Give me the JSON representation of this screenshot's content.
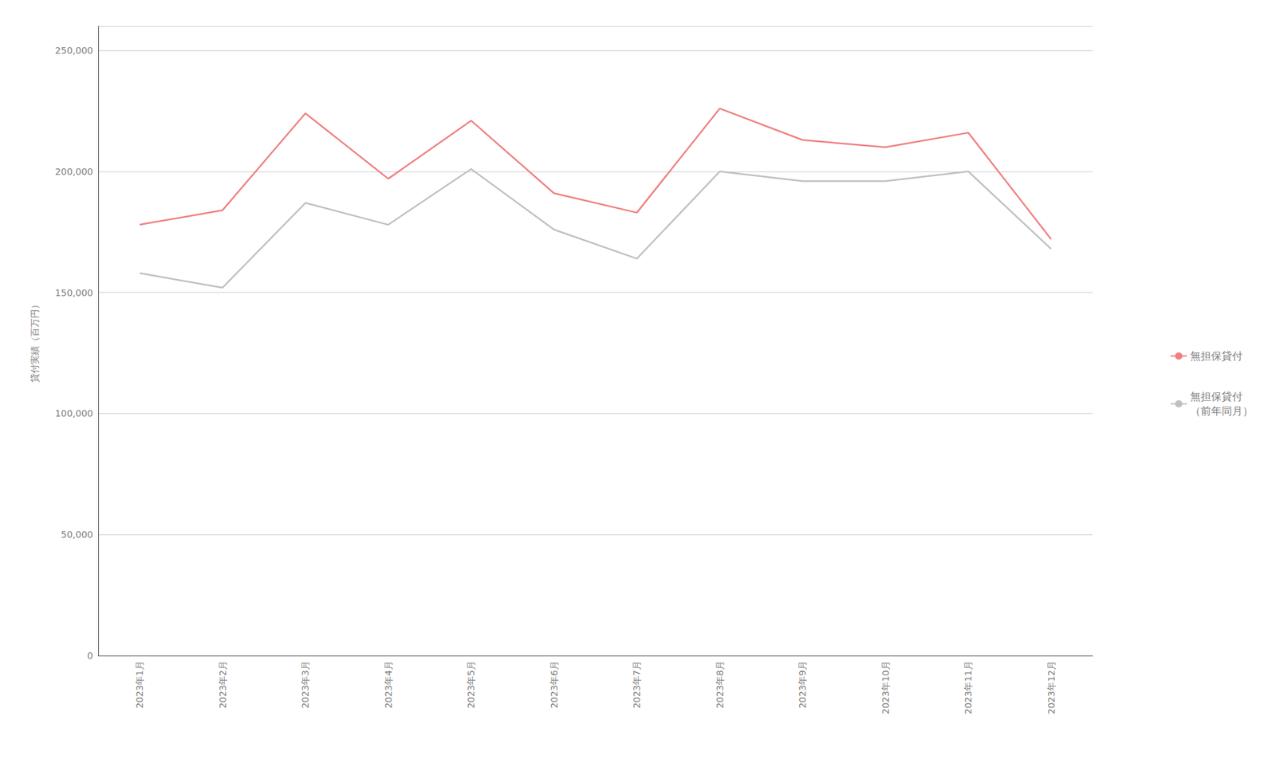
{
  "chart_data": {
    "type": "line",
    "ylabel": "貸付実績（百万円）",
    "categories": [
      "2023年1月",
      "2023年2月",
      "2023年3月",
      "2023年4月",
      "2023年5月",
      "2023年6月",
      "2023年7月",
      "2023年8月",
      "2023年9月",
      "2023年10月",
      "2023年11月",
      "2023年12月"
    ],
    "series": [
      {
        "name": "無担保貸付",
        "color": "#F08080",
        "values": [
          178000,
          184000,
          224000,
          197000,
          221000,
          191000,
          183000,
          226000,
          213000,
          210000,
          216000,
          172000
        ]
      },
      {
        "name": "無担保貸付\n（前年同月）",
        "color": "#C0C0C0",
        "values": [
          158000,
          152000,
          187000,
          178000,
          201000,
          176000,
          164000,
          200000,
          196000,
          196000,
          200000,
          168000
        ]
      }
    ],
    "ylim": [
      0,
      260000
    ],
    "yticks": [
      0,
      {
        "value": 50000,
        "label": "50,000"
      },
      {
        "value": 100000,
        "label": "100,000"
      },
      {
        "value": 150000,
        "label": "150,000"
      },
      {
        "value": 200000,
        "label": "200,000"
      },
      {
        "value": 250000,
        "label": "250,000"
      }
    ],
    "grid": true,
    "legend": "right"
  }
}
